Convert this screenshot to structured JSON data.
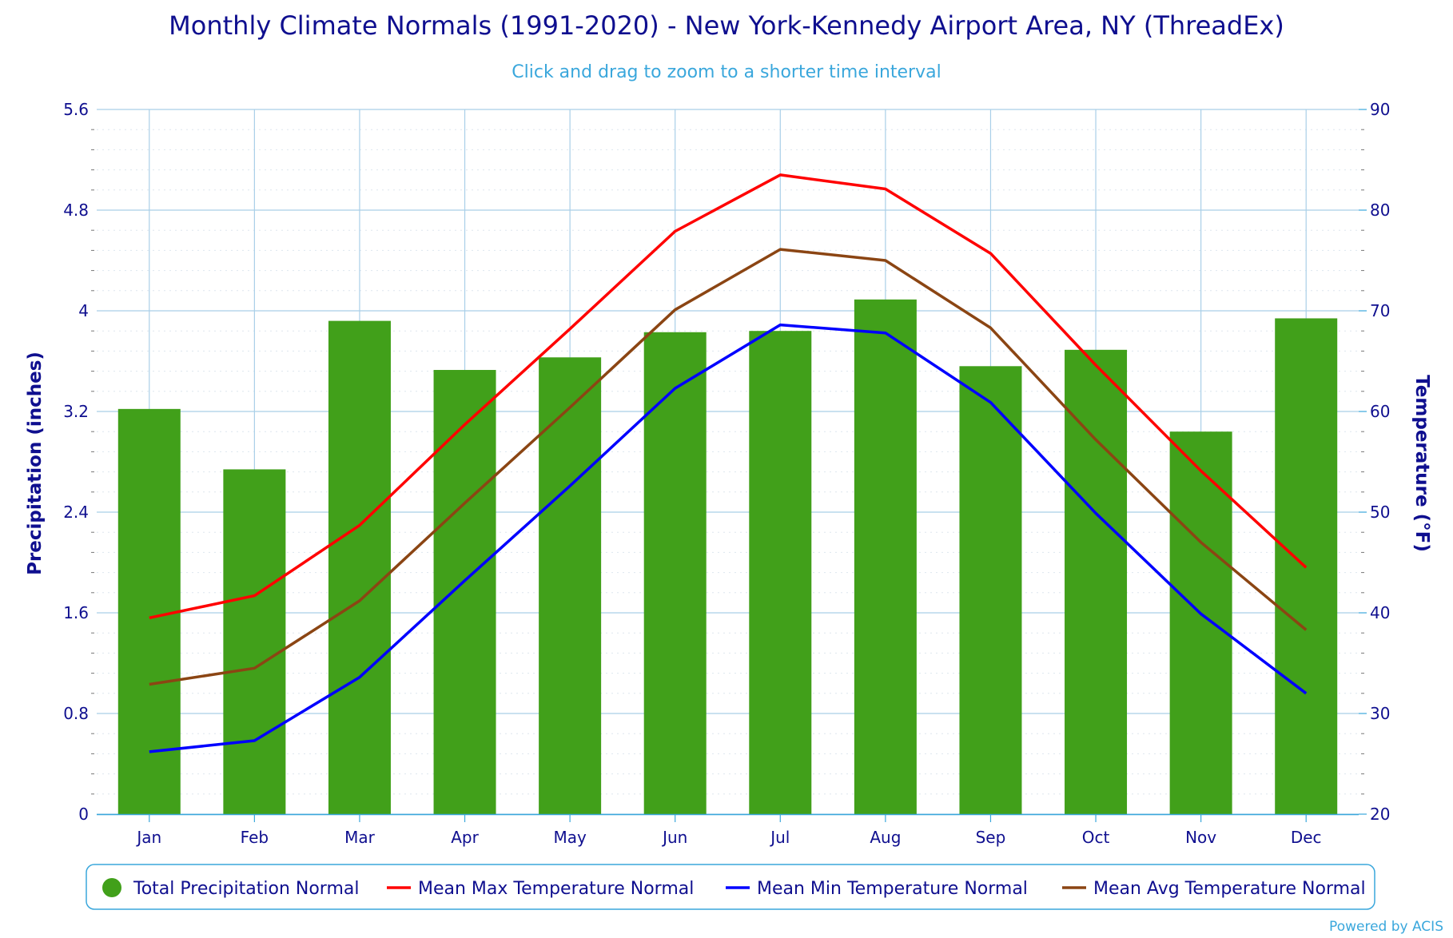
{
  "title": "Monthly Climate Normals (1991-2020) - New York-Kennedy Airport Area, NY (ThreadEx)",
  "subtitle": "Click and drag to zoom to a shorter time interval",
  "credit": "Powered by ACIS",
  "colors": {
    "title": "#0f0f8f",
    "subtitle": "#3aa7dc",
    "grid": "#a9cfe8",
    "precip": "#41a01a",
    "max": "#ff0000",
    "min": "#0000ff",
    "avg": "#8b4513",
    "legend_border": "#3aa7dc"
  },
  "chart_data": {
    "type": "bar",
    "categories": [
      "Jan",
      "Feb",
      "Mar",
      "Apr",
      "May",
      "Jun",
      "Jul",
      "Aug",
      "Sep",
      "Oct",
      "Nov",
      "Dec"
    ],
    "y_left": {
      "label": "Precipitation (inches)",
      "range": [
        0,
        5.6
      ],
      "ticks": [
        "0",
        "0.8",
        "1.6",
        "2.4",
        "3.2",
        "4",
        "4.8",
        "5.6"
      ]
    },
    "y_right": {
      "label": "Temperature (°F)",
      "range": [
        20,
        90
      ],
      "ticks": [
        "20",
        "30",
        "40",
        "50",
        "60",
        "70",
        "80",
        "90"
      ]
    },
    "series": [
      {
        "name": "Total Precipitation Normal",
        "type": "bar",
        "axis": "left",
        "values": [
          3.22,
          2.74,
          3.92,
          3.53,
          3.63,
          3.83,
          3.84,
          4.09,
          3.56,
          3.69,
          3.04,
          3.94
        ]
      },
      {
        "name": "Mean Max Temperature Normal",
        "type": "line",
        "axis": "right",
        "values": [
          39.5,
          41.7,
          48.7,
          58.7,
          68.2,
          77.9,
          83.5,
          82.1,
          75.7,
          64.6,
          54.1,
          44.5
        ]
      },
      {
        "name": "Mean Min Temperature Normal",
        "type": "line",
        "axis": "right",
        "values": [
          26.2,
          27.3,
          33.6,
          43.2,
          52.6,
          62.3,
          68.6,
          67.8,
          60.9,
          49.9,
          39.9,
          32.0
        ]
      },
      {
        "name": "Mean Avg Temperature Normal",
        "type": "line",
        "axis": "right",
        "values": [
          32.9,
          34.5,
          41.2,
          50.9,
          60.4,
          70.1,
          76.1,
          75.0,
          68.3,
          57.2,
          47.0,
          38.3
        ]
      }
    ],
    "grid": true,
    "legend_position": "bottom"
  }
}
